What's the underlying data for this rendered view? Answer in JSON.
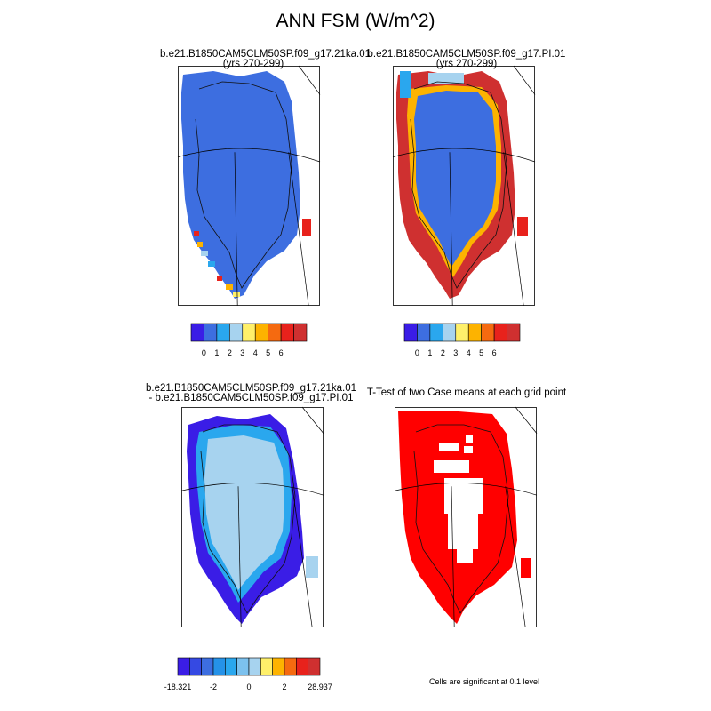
{
  "title": "ANN FSM (W/m^2)",
  "panels": [
    {
      "id": "case1",
      "title_line1": "b.e21.B1850CAM5CLM50SP.f09_g17.21ka.01",
      "title_line2": "(yrs 270-299)",
      "colorbar": {
        "colors": [
          "#3a1de6",
          "#3d6ee0",
          "#2aa7ee",
          "#a7d3ef",
          "#fff06a",
          "#fdb300",
          "#f56a10",
          "#e8221c",
          "#cf3030"
        ],
        "labels": [
          "0",
          "1",
          "2",
          "3",
          "4",
          "5",
          "6"
        ]
      }
    },
    {
      "id": "case2",
      "title_line1": "b.e21.B1850CAM5CLM50SP.f09_g17.PI.01",
      "title_line2": "(yrs 270-299)",
      "colorbar": {
        "colors": [
          "#3a1de6",
          "#3d6ee0",
          "#2aa7ee",
          "#a7d3ef",
          "#fff06a",
          "#fdb300",
          "#f56a10",
          "#e8221c",
          "#cf3030"
        ],
        "labels": [
          "0",
          "1",
          "2",
          "3",
          "4",
          "5",
          "6"
        ]
      }
    },
    {
      "id": "diff",
      "title_line1": "b.e21.B1850CAM5CLM50SP.f09_g17.21ka.01",
      "title_line2": "- b.e21.B1850CAM5CLM50SP.f09_g17.PI.01",
      "colorbar": {
        "colors": [
          "#3a1de6",
          "#3549e3",
          "#3d6ee0",
          "#2592e8",
          "#2aa7ee",
          "#7cc1ee",
          "#a7d3ef",
          "#fff06a",
          "#fdb300",
          "#f56a10",
          "#e8221c",
          "#cf3030"
        ],
        "labels": [
          "-18.321",
          "-2",
          "0",
          "2",
          "28.937"
        ]
      }
    },
    {
      "id": "ttest",
      "title_line1": "T-Test of two Case means at each grid point",
      "note": "Cells are significant at 0.1 level"
    }
  ],
  "colors": {
    "case1_interior": "#3d6ee0",
    "case2_interior": "#3d6ee0",
    "diff_interior": "#a7d3ef",
    "diff_edge": "#3a1de6",
    "significant": "#ff0000"
  }
}
